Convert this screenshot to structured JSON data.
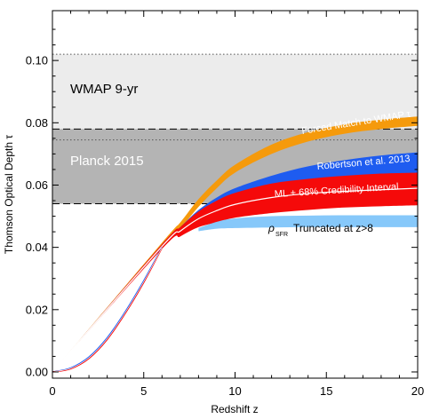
{
  "chart_data": {
    "type": "area",
    "xlabel": "Redshift z",
    "ylabel": "Thomson Optical Depth τ",
    "xlim": [
      0,
      20
    ],
    "ylim": [
      -0.002,
      0.116
    ],
    "xticks": [
      0,
      5,
      10,
      15,
      20
    ],
    "xtick_labels": [
      "0",
      "5",
      "10",
      "15",
      "20"
    ],
    "yticks": [
      0.0,
      0.02,
      0.04,
      0.06,
      0.08,
      0.1
    ],
    "ytick_labels": [
      "0.00",
      "0.02",
      "0.04",
      "0.06",
      "0.08",
      "0.10"
    ],
    "grid": false,
    "observational_constraints": [
      {
        "name": "WMAP 9-yr",
        "low": 0.075,
        "high": 0.102,
        "central_dotted": [
          0.102
        ],
        "fill": "#ececec",
        "label_pos": [
          1.0,
          0.0865
        ]
      },
      {
        "name": "Planck 2015",
        "low": 0.054,
        "high": 0.078,
        "bounds_dashed": [
          0.054,
          0.078
        ],
        "central_dotted": [
          0.0745
        ],
        "fill": "#b4b4b4",
        "label_pos": [
          1.0,
          0.0655
        ]
      }
    ],
    "series": [
      {
        "name": "Forced Match to WMAP τ",
        "color": "#f59a0c",
        "x": [
          0,
          6,
          7,
          8,
          9,
          10,
          12,
          14,
          16,
          18,
          20
        ],
        "low": [
          0,
          0.04,
          0.046,
          0.053,
          0.059,
          0.064,
          0.07,
          0.074,
          0.0765,
          0.078,
          0.079
        ],
        "high": [
          0,
          0.0415,
          0.048,
          0.0555,
          0.0615,
          0.0665,
          0.073,
          0.077,
          0.0795,
          0.081,
          0.082
        ]
      },
      {
        "name": "Robertson et al. 2013",
        "color": "#1e5cf0",
        "x": [
          0,
          6,
          7,
          8,
          9,
          10,
          12,
          14,
          16,
          18,
          20
        ],
        "low": [
          0,
          0.04,
          0.045,
          0.0495,
          0.0525,
          0.055,
          0.0575,
          0.0595,
          0.061,
          0.062,
          0.063
        ],
        "high": [
          0,
          0.041,
          0.0465,
          0.052,
          0.056,
          0.059,
          0.063,
          0.066,
          0.068,
          0.0695,
          0.0705
        ]
      },
      {
        "name": "ML + 68% Credibility Interval",
        "color": "#f50a0a",
        "x": [
          0,
          6,
          7,
          8,
          9,
          10,
          12,
          14,
          16,
          18,
          20
        ],
        "low": [
          0,
          0.0395,
          0.0435,
          0.0465,
          0.048,
          0.0495,
          0.051,
          0.052,
          0.0528,
          0.0532,
          0.0535
        ],
        "high": [
          0,
          0.041,
          0.0465,
          0.0515,
          0.055,
          0.0575,
          0.0605,
          0.062,
          0.063,
          0.0637,
          0.064
        ],
        "ml": [
          0,
          0.0403,
          0.0452,
          0.0492,
          0.0518,
          0.0538,
          0.056,
          0.0573,
          0.058,
          0.0585,
          0.059
        ]
      },
      {
        "name": "ρ_SFR Truncated at z>8",
        "color": "#86c8fa",
        "x": [
          8,
          9,
          10,
          12,
          14,
          16,
          18,
          20
        ],
        "low": [
          0.0452,
          0.046,
          0.0462,
          0.0464,
          0.0465,
          0.0465,
          0.0465,
          0.0465
        ],
        "high": [
          0.0462,
          0.0482,
          0.0493,
          0.05,
          0.0502,
          0.0503,
          0.0503,
          0.0503
        ]
      }
    ],
    "low_z_curves": {
      "x": [
        0,
        1,
        2,
        3,
        4,
        5,
        6
      ],
      "blue": [
        0,
        0.0013,
        0.0048,
        0.011,
        0.0195,
        0.0293,
        0.04
      ],
      "red": [
        0,
        0.001,
        0.0043,
        0.0104,
        0.0189,
        0.0287,
        0.0398
      ]
    },
    "annotations": {
      "forced": "Forced Match to WMAP τ",
      "robertson": "Robertson et al. 2013",
      "ml": "ML + 68% Credibility Interval",
      "rho": "ρ",
      "sfr": "SFR",
      "truncated": "Truncated at z>8"
    }
  }
}
